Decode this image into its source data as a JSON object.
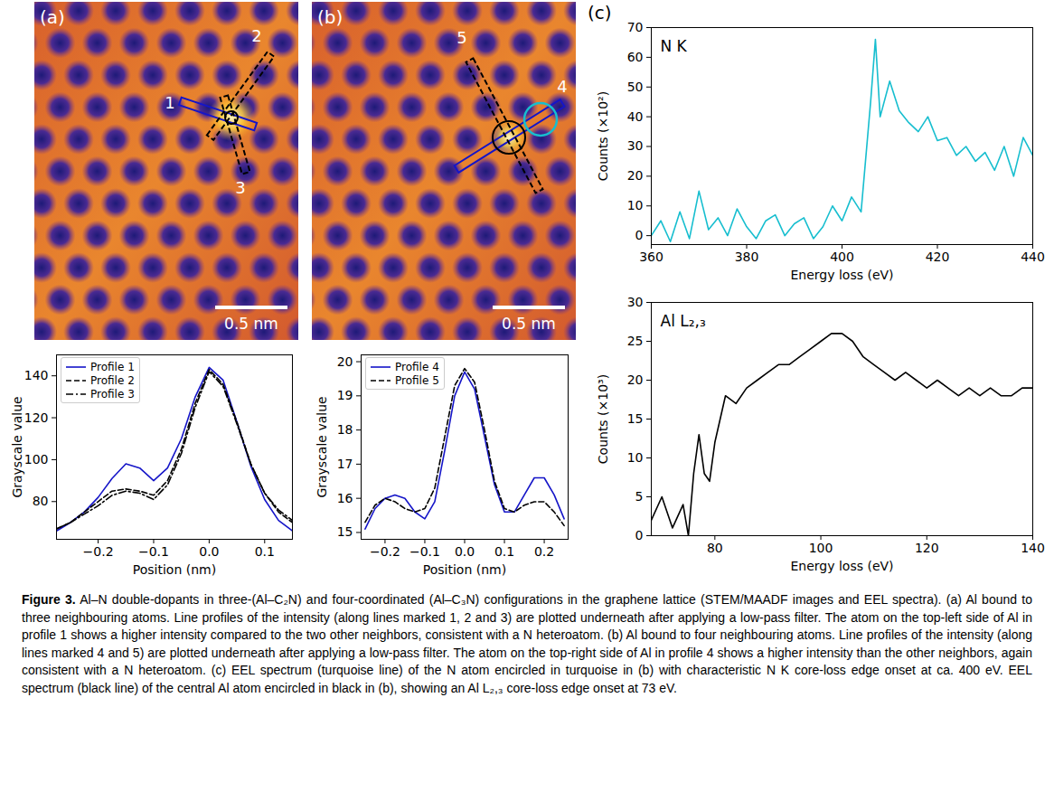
{
  "figure": {
    "label": "Figure 3.",
    "caption": "Al–N double-dopants in three-(Al–C₂N) and four-coordinated (Al–C₃N) configurations in the graphene lattice (STEM/MAADF images and EEL spectra). (a) Al bound to three neighbouring atoms. Line profiles of the intensity (along lines marked 1, 2 and 3) are plotted underneath after applying a low-pass filter. The atom on the top-left side of Al in profile 1 shows a higher intensity compared to the two other neighbors, consistent with a N heteroatom. (b) Al bound to four neighbouring atoms. Line profiles of the intensity (along lines marked 4 and 5) are plotted underneath after applying a low-pass filter. The atom on the top-right side of Al in profile 4 shows a higher intensity than the other neighbors, again consistent with a N heteroatom. (c) EEL spectrum (turquoise line) of the N atom encircled in turquoise in (b) with characteristic N K core-loss edge onset at ca. 400 eV. EEL spectrum (black line) of the central Al atom encircled in black in (b), showing an Al L₂,₃ core-loss edge onset at 73 eV.",
    "images": [
      {
        "letter": "(a)",
        "scale_bar": "0.5 nm",
        "profile_labels": [
          "1",
          "2",
          "3"
        ]
      },
      {
        "letter": "(b)",
        "scale_bar": "0.5 nm",
        "profile_labels": [
          "4",
          "5"
        ]
      }
    ],
    "spectra_letter": "(c)"
  },
  "chart_data": [
    {
      "type": "line",
      "xlabel": "Position (nm)",
      "ylabel": "Grayscale value",
      "x": [
        -0.275,
        -0.25,
        -0.225,
        -0.2,
        -0.175,
        -0.15,
        -0.125,
        -0.1,
        -0.075,
        -0.05,
        -0.025,
        0,
        0.025,
        0.05,
        0.075,
        0.1,
        0.125,
        0.15
      ],
      "series": [
        {
          "name": "Profile 1",
          "color": "#1515c8",
          "line_style": "solid",
          "values": [
            66,
            70,
            75,
            82,
            91,
            98,
            96,
            90,
            96,
            110,
            130,
            144,
            138,
            118,
            97,
            81,
            71,
            66
          ]
        },
        {
          "name": "Profile 2",
          "color": "#000000",
          "line_style": "dashed",
          "values": [
            67,
            70,
            75,
            80,
            85,
            86,
            85,
            83,
            90,
            105,
            127,
            143,
            136,
            118,
            98,
            84,
            75,
            70
          ]
        },
        {
          "name": "Profile 3",
          "color": "#000000",
          "line_style": "dashdot",
          "values": [
            67,
            70,
            74,
            78,
            83,
            85,
            84,
            81,
            88,
            103,
            125,
            142,
            135,
            117,
            98,
            84,
            76,
            71
          ]
        }
      ],
      "xlim": [
        -0.275,
        0.15
      ],
      "xticks": [
        {
          "value": -0.2,
          "label": "−0.2"
        },
        {
          "value": -0.1,
          "label": "−0.1"
        },
        {
          "value": 0,
          "label": "0.0"
        },
        {
          "value": 0.1,
          "label": "0.1"
        }
      ],
      "ylim": [
        62,
        150
      ],
      "yticks": [
        80,
        100,
        120,
        140
      ],
      "legend": "top-left"
    },
    {
      "type": "line",
      "xlabel": "Position (nm)",
      "ylabel": "Grayscale value",
      "x": [
        -0.25,
        -0.225,
        -0.2,
        -0.175,
        -0.15,
        -0.125,
        -0.1,
        -0.075,
        -0.05,
        -0.025,
        0,
        0.025,
        0.05,
        0.075,
        0.1,
        0.125,
        0.15,
        0.175,
        0.2,
        0.225,
        0.25
      ],
      "series": [
        {
          "name": "Profile 4",
          "color": "#1515c8",
          "line_style": "solid",
          "values": [
            15.1,
            15.7,
            16.0,
            16.1,
            16.0,
            15.6,
            15.4,
            15.9,
            17.4,
            19.0,
            19.7,
            19.2,
            17.8,
            16.4,
            15.6,
            15.6,
            16.1,
            16.6,
            16.6,
            16.1,
            15.4
          ]
        },
        {
          "name": "Profile 5",
          "color": "#000000",
          "line_style": "dashed",
          "values": [
            15.3,
            15.8,
            16.0,
            15.9,
            15.7,
            15.6,
            15.7,
            16.3,
            17.8,
            19.3,
            19.8,
            19.4,
            18.0,
            16.5,
            15.7,
            15.6,
            15.8,
            15.9,
            15.9,
            15.6,
            15.2
          ]
        }
      ],
      "xlim": [
        -0.26,
        0.26
      ],
      "xticks": [
        {
          "value": -0.2,
          "label": "−0.2"
        },
        {
          "value": -0.1,
          "label": "−0.1"
        },
        {
          "value": 0,
          "label": "0.0"
        },
        {
          "value": 0.1,
          "label": "0.1"
        },
        {
          "value": 0.2,
          "label": "0.2"
        }
      ],
      "ylim": [
        14.8,
        20.2
      ],
      "yticks": [
        15,
        16,
        17,
        18,
        19,
        20
      ],
      "legend": "top-left"
    },
    {
      "type": "line",
      "annotation": "N K",
      "xlabel": "Energy loss (eV)",
      "ylabel": "Counts (×10²)",
      "color": "#17becf",
      "line_style": "solid",
      "x": [
        360,
        362,
        364,
        366,
        368,
        370,
        372,
        374,
        376,
        378,
        380,
        382,
        384,
        386,
        388,
        390,
        392,
        394,
        396,
        398,
        400,
        402,
        404,
        406,
        407,
        408,
        410,
        412,
        414,
        416,
        418,
        420,
        422,
        424,
        426,
        428,
        430,
        432,
        434,
        436,
        438,
        440
      ],
      "values": [
        0,
        5,
        -2,
        8,
        -1,
        15,
        2,
        6,
        0,
        9,
        3,
        -1,
        5,
        7,
        0,
        4,
        6,
        -1,
        3,
        10,
        5,
        13,
        8,
        45,
        66,
        40,
        52,
        42,
        38,
        35,
        40,
        32,
        33,
        27,
        30,
        25,
        28,
        22,
        30,
        20,
        33,
        27
      ],
      "xlim": [
        360,
        440
      ],
      "xticks": [
        360,
        380,
        400,
        420,
        440
      ],
      "ylim": [
        -3,
        70
      ],
      "yticks": [
        0,
        10,
        20,
        30,
        40,
        50,
        60,
        70
      ]
    },
    {
      "type": "line",
      "annotation": "Al L₂,₃",
      "xlabel": "Energy loss (eV)",
      "ylabel": "Counts (×10³)",
      "color": "#000000",
      "line_style": "solid",
      "x": [
        68,
        70,
        72,
        74,
        75,
        76,
        77,
        78,
        79,
        80,
        82,
        84,
        86,
        88,
        90,
        92,
        94,
        96,
        98,
        100,
        102,
        104,
        106,
        108,
        110,
        112,
        114,
        116,
        118,
        120,
        122,
        124,
        126,
        128,
        130,
        132,
        134,
        136,
        138,
        140
      ],
      "values": [
        2,
        5,
        1,
        4,
        0,
        8,
        13,
        8,
        7,
        12,
        18,
        17,
        19,
        20,
        21,
        22,
        22,
        23,
        24,
        25,
        26,
        26,
        25,
        23,
        22,
        21,
        20,
        21,
        20,
        19,
        20,
        19,
        18,
        19,
        18,
        19,
        18,
        18,
        19,
        19
      ],
      "xlim": [
        68,
        140
      ],
      "xticks": [
        80,
        100,
        120,
        140
      ],
      "ylim": [
        0,
        30
      ],
      "yticks": [
        0,
        5,
        10,
        15,
        20,
        25,
        30
      ]
    }
  ]
}
